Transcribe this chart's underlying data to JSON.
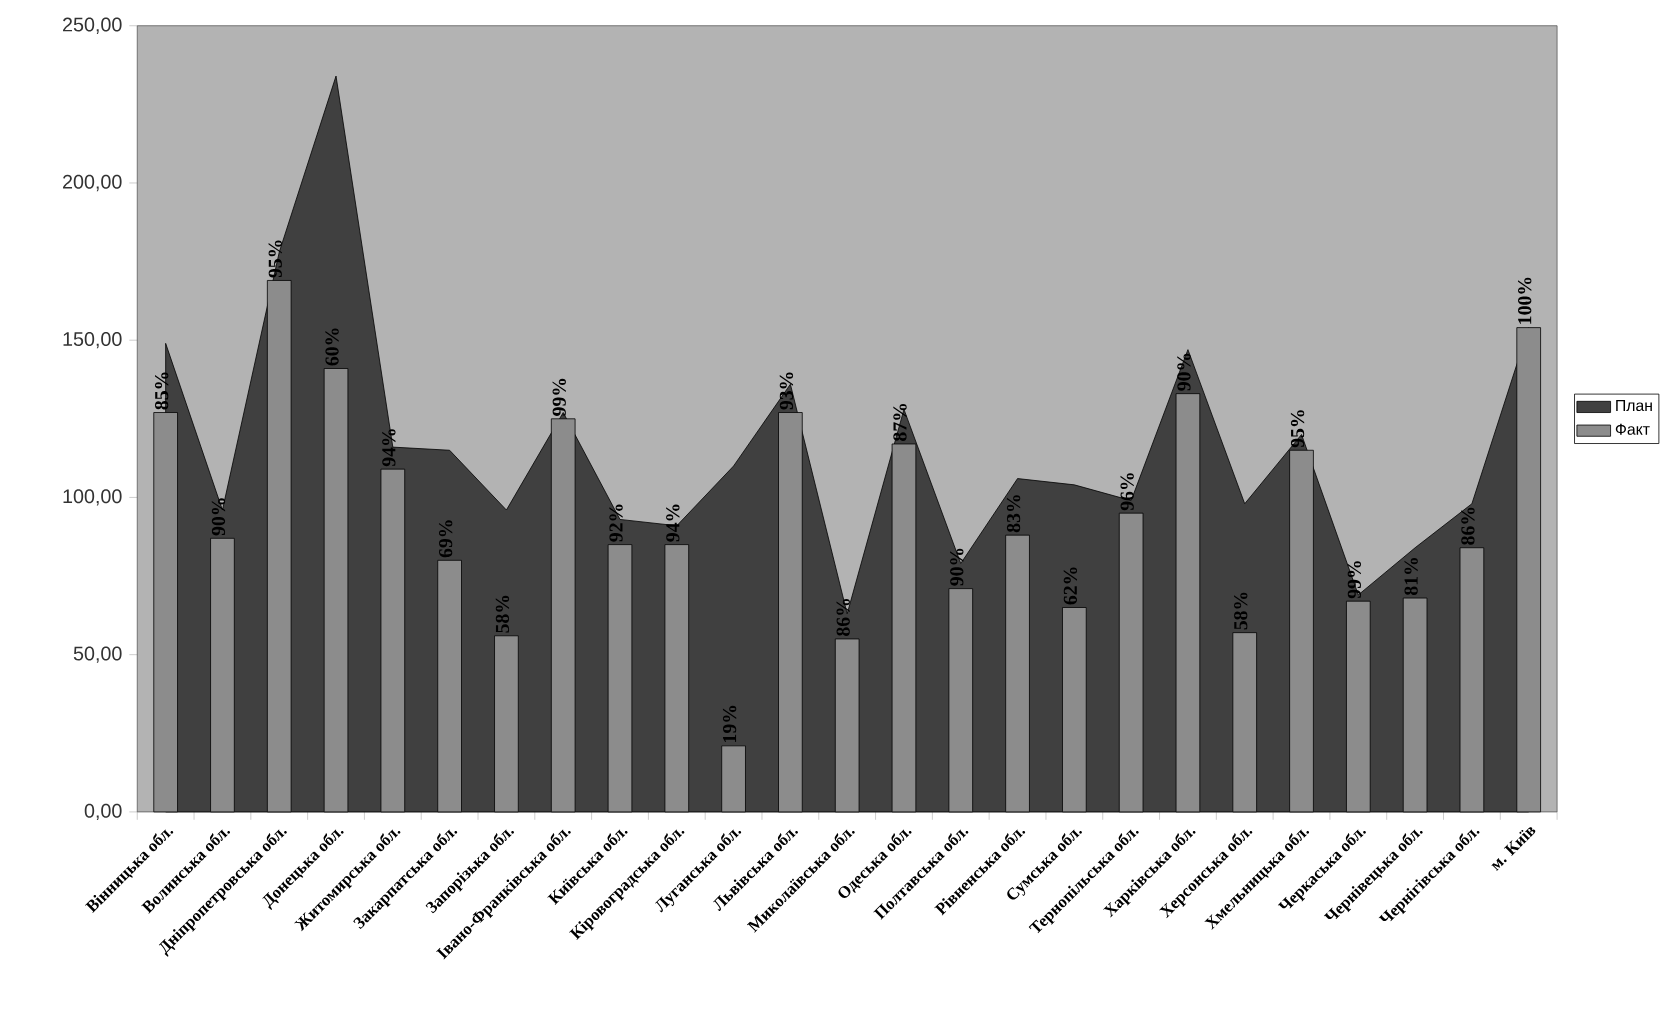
{
  "chart_data": {
    "type": "bar",
    "categories": [
      "Вінницька обл.",
      "Волинська обл.",
      "Дніпропетровська обл.",
      "Донецька обл.",
      "Житомирська обл.",
      "Закарпатська обл.",
      "Запорізька обл.",
      "Івано-Франківська обл.",
      "Київська обл.",
      "Кіровоградська обл.",
      "Луганська обл.",
      "Львівська обл.",
      "Миколаївська обл.",
      "Одеська обл.",
      "Полтавська обл.",
      "Рівненська обл.",
      "Сумська обл.",
      "Тернопільська обл.",
      "Харківська обл.",
      "Херсонська обл.",
      "Хмельницька обл.",
      "Черкаська обл.",
      "Чернівецька обл.",
      "Чернігівська обл.",
      "м. Київ"
    ],
    "series": [
      {
        "name": "План",
        "type": "area",
        "color": "#404040",
        "values": [
          149,
          96,
          178,
          234,
          116,
          115,
          96,
          127,
          93,
          91,
          110,
          136,
          63,
          128,
          79,
          106,
          104,
          99,
          147,
          98,
          120,
          69,
          84,
          98,
          154
        ]
      },
      {
        "name": "Факт",
        "color": "#8c8c8c",
        "values": [
          127,
          87,
          169,
          141,
          109,
          80,
          56,
          125,
          85,
          85,
          21,
          127,
          55,
          117,
          71,
          88,
          65,
          95,
          133,
          57,
          115,
          67,
          68,
          84,
          154
        ]
      }
    ],
    "annotations": [
      {
        "text": "85%",
        "x": "Вінницька обл.",
        "y": 127
      },
      {
        "text": "90%",
        "x": "Волинська обл.",
        "y": 87
      },
      {
        "text": "95%",
        "x": "Дніпропетровська обл.",
        "y": 169
      },
      {
        "text": "60%",
        "x": "Донецька обл.",
        "y": 141
      },
      {
        "text": "94%",
        "x": "Житомирська обл.",
        "y": 109
      },
      {
        "text": "69%",
        "x": "Закарпатська обл.",
        "y": 80
      },
      {
        "text": "58%",
        "x": "Запорізька обл.",
        "y": 56
      },
      {
        "text": "99%",
        "x": "Івано-Франківська обл.",
        "y": 125
      },
      {
        "text": "92%",
        "x": "Київська обл.",
        "y": 85
      },
      {
        "text": "94%",
        "x": "Кіровоградська обл.",
        "y": 85
      },
      {
        "text": "19%",
        "x": "Луганська обл.",
        "y": 21
      },
      {
        "text": "93%",
        "x": "Львівська обл.",
        "y": 127
      },
      {
        "text": "86%",
        "x": "Миколаївська обл.",
        "y": 55
      },
      {
        "text": "87%",
        "x": "Одеська обл.",
        "y": 117
      },
      {
        "text": "90%",
        "x": "Полтавська обл.",
        "y": 71
      },
      {
        "text": "83%",
        "x": "Рівненська обл.",
        "y": 88
      },
      {
        "text": "62%",
        "x": "Сумська обл.",
        "y": 65
      },
      {
        "text": "96%",
        "x": "Тернопільська обл.",
        "y": 95
      },
      {
        "text": "90%",
        "x": "Харківська обл.",
        "y": 133
      },
      {
        "text": "58%",
        "x": "Херсонська обл.",
        "y": 57
      },
      {
        "text": "95%",
        "x": "Хмельницька обл.",
        "y": 115
      },
      {
        "text": "99%",
        "x": "Черкаська обл.",
        "y": 67
      },
      {
        "text": "81%",
        "x": "Чернівецька обл.",
        "y": 68
      },
      {
        "text": "86%",
        "x": "Чернігівська обл.",
        "y": 84
      },
      {
        "text": "100%",
        "x": "м. Київ",
        "y": 154
      }
    ],
    "ylim": [
      0,
      250
    ],
    "yticks": [
      {
        "value": 0,
        "label": "0,00"
      },
      {
        "value": 50,
        "label": "50,00"
      },
      {
        "value": 100,
        "label": "100,00"
      },
      {
        "value": 150,
        "label": "150,00"
      },
      {
        "value": 200,
        "label": "200,00"
      },
      {
        "value": 250,
        "label": "250,00"
      }
    ],
    "legend": "right"
  }
}
